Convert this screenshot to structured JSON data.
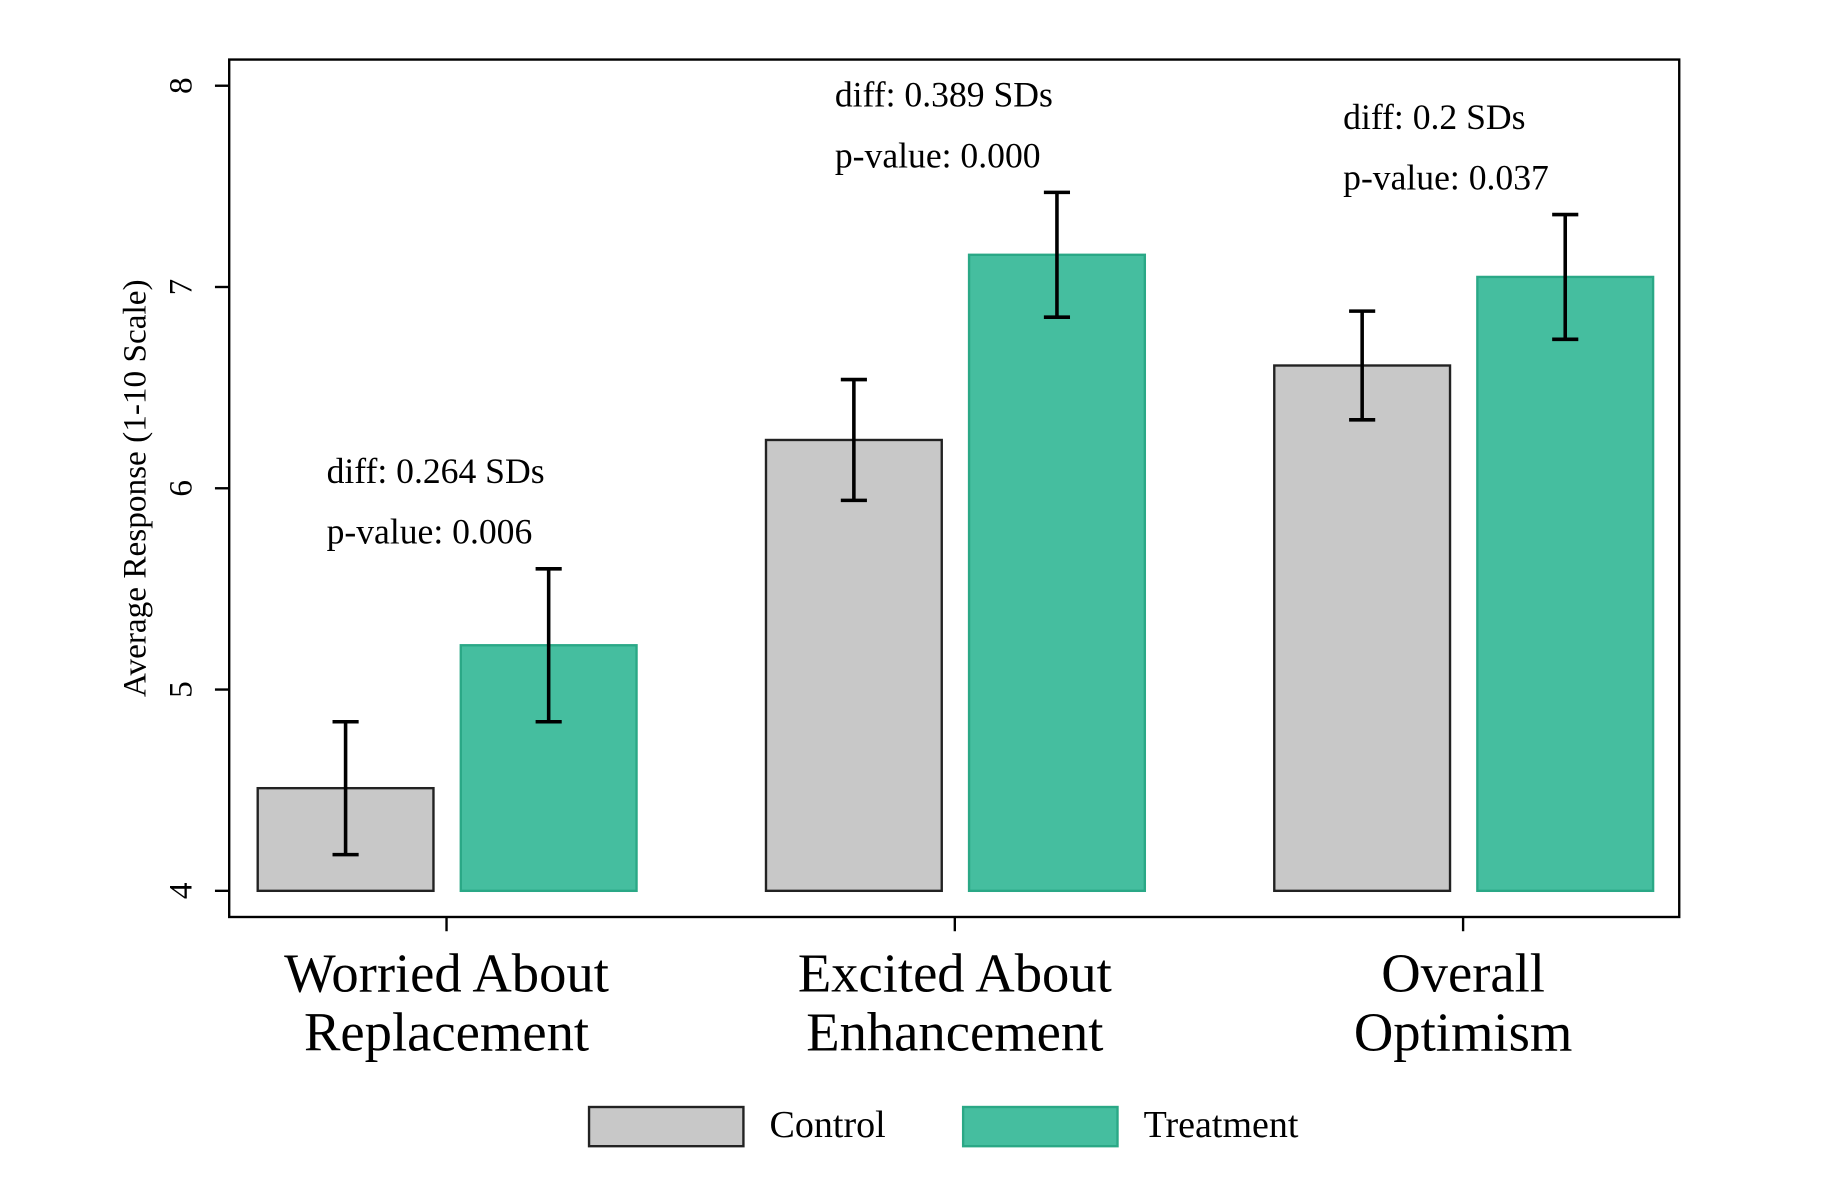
{
  "chart_data": {
    "type": "bar",
    "y_label": "Average Response (1-10 Scale)",
    "categories": [
      [
        "Worried About",
        "Replacement"
      ],
      [
        "Excited About",
        "Enhancement"
      ],
      [
        "Overall",
        "Optimism"
      ]
    ],
    "series": [
      {
        "name": "Control",
        "color": "#c8c8c8",
        "edge": "#222222",
        "values": [
          4.51,
          6.24,
          6.61
        ],
        "errors": [
          0.33,
          0.3,
          0.27
        ]
      },
      {
        "name": "Treatment",
        "color": "#45be9f",
        "edge": "#2aa886",
        "values": [
          5.22,
          7.16,
          7.05
        ],
        "errors": [
          0.38,
          0.31,
          0.31
        ]
      }
    ],
    "annotations": [
      [
        "diff: 0.264 SDs",
        "p-value: 0.006"
      ],
      [
        "diff: 0.389 SDs",
        "p-value: 0.000"
      ],
      [
        "diff: 0.2 SDs",
        "p-value: 0.037"
      ]
    ],
    "base": 4,
    "ylim": [
      3.87,
      8.13
    ],
    "yticks": [
      4,
      5,
      6,
      7,
      8
    ],
    "grid": false,
    "legend": "bottom"
  }
}
